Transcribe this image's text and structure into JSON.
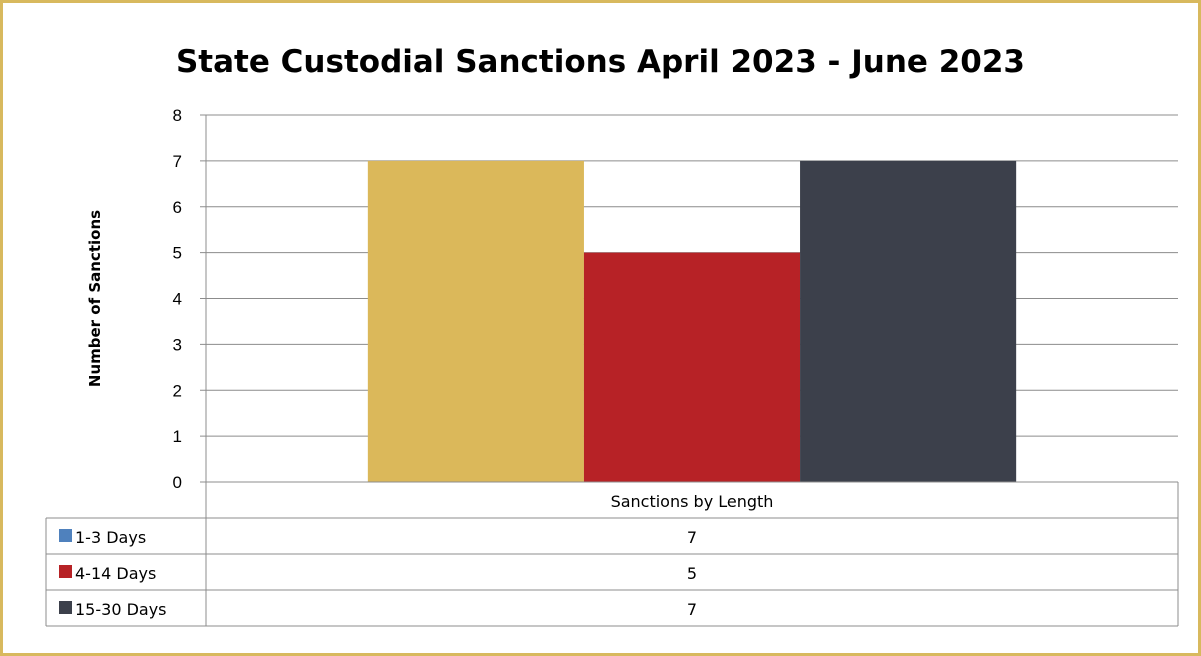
{
  "chart_data": {
    "type": "bar",
    "title": "State Custodial Sanctions April 2023 - June 2023",
    "ylabel": "Number of Sanctions",
    "categories": [
      "Sanctions by Length"
    ],
    "series": [
      {
        "name": "1-3 Days",
        "values": [
          7
        ],
        "color": "#dbb85a",
        "legend_color": "#4f81bd"
      },
      {
        "name": "4-14 Days",
        "values": [
          5
        ],
        "color": "#b72226",
        "legend_color": "#b72226"
      },
      {
        "name": "15-30 Days",
        "values": [
          7
        ],
        "color": "#3c404b",
        "legend_color": "#3c404b"
      }
    ],
    "ylim": [
      0,
      8
    ],
    "yticks": [
      0,
      1,
      2,
      3,
      4,
      5,
      6,
      7,
      8
    ],
    "grid": true,
    "legend": "data-table"
  },
  "colors": {
    "border": "#d8b95e",
    "grid": "#8c8c8c"
  }
}
